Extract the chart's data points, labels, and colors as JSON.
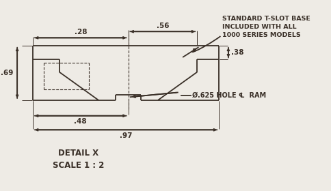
{
  "bg_color": "#eeebe5",
  "line_color": "#3a3028",
  "text_color": "#3a3028",
  "title": "DETAIL X\nSCALE 1 : 2",
  "note": "STANDARD T-SLOT BASE\nINCLUDED WITH ALL\n1000 SERIES MODELS",
  "dim_056": ".56",
  "dim_028": ".28",
  "dim_069": ".69",
  "dim_038": ".38",
  "dim_048": ".48",
  "dim_097": ".97",
  "hole_label": "Ø.625 HOLE ℄  RAM"
}
